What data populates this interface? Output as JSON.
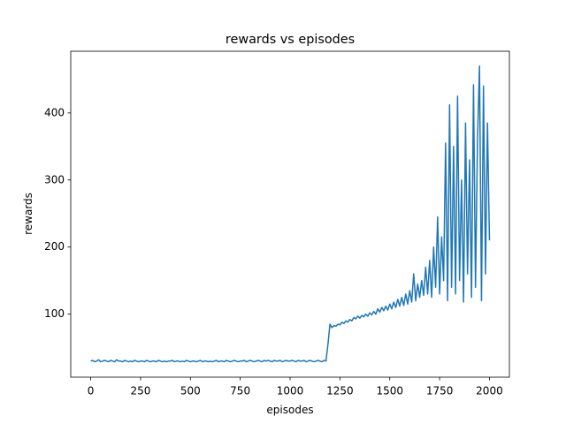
{
  "chart_data": {
    "type": "line",
    "title": "rewards vs episodes",
    "xlabel": "episodes",
    "ylabel": "rewards",
    "x": [
      0,
      10,
      20,
      30,
      40,
      50,
      60,
      70,
      80,
      90,
      100,
      110,
      120,
      130,
      140,
      150,
      160,
      170,
      180,
      190,
      200,
      210,
      220,
      230,
      240,
      250,
      260,
      270,
      280,
      290,
      300,
      310,
      320,
      330,
      340,
      350,
      360,
      370,
      380,
      390,
      400,
      410,
      420,
      430,
      440,
      450,
      460,
      470,
      480,
      490,
      500,
      510,
      520,
      530,
      540,
      550,
      560,
      570,
      580,
      590,
      600,
      610,
      620,
      630,
      640,
      650,
      660,
      670,
      680,
      690,
      700,
      710,
      720,
      730,
      740,
      750,
      760,
      770,
      780,
      790,
      800,
      810,
      820,
      830,
      840,
      850,
      860,
      870,
      880,
      890,
      900,
      910,
      920,
      930,
      940,
      950,
      960,
      970,
      980,
      990,
      1000,
      1010,
      1020,
      1030,
      1040,
      1050,
      1060,
      1070,
      1080,
      1090,
      1100,
      1110,
      1120,
      1130,
      1140,
      1150,
      1160,
      1170,
      1180,
      1190,
      1200,
      1210,
      1220,
      1230,
      1240,
      1250,
      1260,
      1270,
      1280,
      1290,
      1300,
      1310,
      1320,
      1330,
      1340,
      1350,
      1360,
      1370,
      1380,
      1390,
      1400,
      1410,
      1420,
      1430,
      1440,
      1450,
      1460,
      1470,
      1480,
      1490,
      1500,
      1510,
      1520,
      1530,
      1540,
      1550,
      1560,
      1570,
      1580,
      1590,
      1600,
      1610,
      1620,
      1630,
      1640,
      1650,
      1660,
      1670,
      1680,
      1690,
      1700,
      1710,
      1720,
      1730,
      1740,
      1750,
      1760,
      1770,
      1780,
      1790,
      1800,
      1810,
      1820,
      1830,
      1840,
      1850,
      1860,
      1870,
      1880,
      1890,
      1900,
      1910,
      1920,
      1930,
      1940,
      1950,
      1960,
      1970,
      1980,
      1990,
      2000
    ],
    "series": [
      {
        "name": "rewards",
        "color": "#1f77b4",
        "values": [
          30,
          31,
          29,
          30,
          32,
          29,
          30,
          31,
          30,
          29,
          31,
          30,
          29,
          32,
          30,
          30,
          29,
          31,
          30,
          29,
          30,
          29,
          31,
          30,
          29,
          30,
          30,
          29,
          31,
          30,
          29,
          30,
          30,
          29,
          31,
          30,
          29,
          30,
          29,
          30,
          30,
          31,
          29,
          30,
          30,
          29,
          30,
          29,
          31,
          30,
          29,
          30,
          30,
          29,
          30,
          31,
          29,
          30,
          30,
          29,
          30,
          29,
          30,
          31,
          29,
          30,
          30,
          29,
          31,
          30,
          29,
          30,
          31,
          30,
          29,
          30,
          30,
          31,
          29,
          30,
          31,
          30,
          29,
          30,
          31,
          30,
          29,
          31,
          30,
          31,
          30,
          29,
          31,
          30,
          30,
          31,
          29,
          30,
          31,
          30,
          30,
          31,
          30,
          29,
          31,
          30,
          30,
          31,
          29,
          30,
          31,
          30,
          29,
          30,
          31,
          30,
          29,
          31,
          30,
          55,
          85,
          80,
          83,
          82,
          85,
          84,
          88,
          86,
          90,
          88,
          92,
          90,
          95,
          93,
          97,
          94,
          98,
          96,
          100,
          97,
          102,
          99,
          104,
          100,
          108,
          103,
          110,
          105,
          112,
          106,
          115,
          108,
          118,
          110,
          122,
          112,
          125,
          113,
          130,
          115,
          135,
          118,
          160,
          120,
          145,
          125,
          150,
          128,
          170,
          130,
          180,
          125,
          200,
          140,
          245,
          130,
          215,
          150,
          355,
          120,
          412,
          140,
          350,
          130,
          425,
          150,
          300,
          118,
          385,
          160,
          330,
          125,
          442,
          140,
          360,
          470,
          120,
          440,
          160,
          385,
          210
        ]
      }
    ],
    "xlim": [
      -100,
      2100
    ],
    "ylim": [
      6,
      492
    ],
    "xticks": [
      0,
      250,
      500,
      750,
      1000,
      1250,
      1500,
      1750,
      2000
    ],
    "yticks": [
      100,
      200,
      300,
      400
    ]
  }
}
